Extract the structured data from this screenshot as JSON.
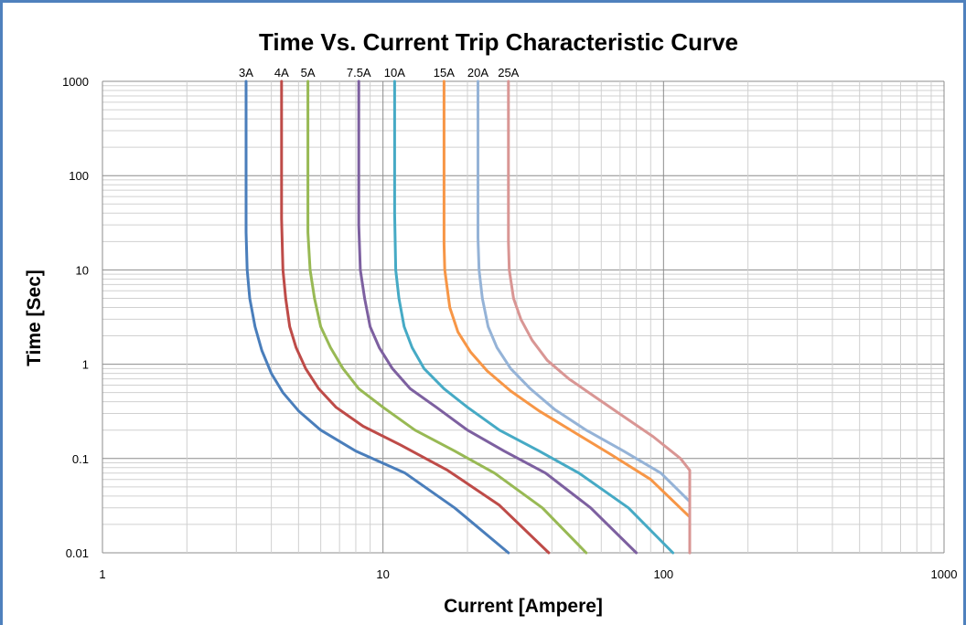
{
  "chart_data": {
    "type": "line",
    "title": "Time Vs. Current Trip Characteristic Curve",
    "xlabel": "Current [Ampere]",
    "ylabel": "Time [Sec]",
    "x_scale": "log",
    "y_scale": "log",
    "xlim": [
      1,
      1000
    ],
    "ylim": [
      0.01,
      1000
    ],
    "x_ticks": [
      "1",
      "10",
      "100",
      "1000"
    ],
    "y_ticks": [
      "1000",
      "100",
      "10",
      "1",
      "0.1",
      "0.01"
    ],
    "grid": true,
    "legend": "labels at top of each curve",
    "series": [
      {
        "name": "3A",
        "color": "#4a7ebb",
        "x": [
          3.25,
          3.25,
          3.28,
          3.35,
          3.5,
          3.7,
          4.0,
          4.4,
          5.0,
          6.0,
          8.0,
          12.0,
          18.0,
          28.0
        ],
        "y": [
          1000,
          25,
          10,
          5,
          2.5,
          1.4,
          0.8,
          0.5,
          0.32,
          0.2,
          0.12,
          0.07,
          0.03,
          0.01
        ]
      },
      {
        "name": "4A",
        "color": "#be4b48",
        "x": [
          4.35,
          4.35,
          4.4,
          4.5,
          4.65,
          4.9,
          5.3,
          5.9,
          6.8,
          8.5,
          11.5,
          17.0,
          26.0,
          39.0
        ],
        "y": [
          1000,
          35,
          10,
          5,
          2.5,
          1.5,
          0.9,
          0.55,
          0.35,
          0.22,
          0.14,
          0.075,
          0.032,
          0.01
        ]
      },
      {
        "name": "5A",
        "color": "#98b954",
        "x": [
          5.4,
          5.4,
          5.5,
          5.7,
          6.0,
          6.5,
          7.2,
          8.2,
          10.0,
          13.0,
          18.0,
          25.0,
          37.0,
          53.0
        ],
        "y": [
          1000,
          25,
          10,
          5,
          2.5,
          1.5,
          0.9,
          0.55,
          0.35,
          0.2,
          0.12,
          0.07,
          0.03,
          0.01
        ]
      },
      {
        "name": "7.5A",
        "color": "#7d60a0",
        "x": [
          8.2,
          8.2,
          8.3,
          8.6,
          9.0,
          9.7,
          10.8,
          12.5,
          15.5,
          20.0,
          27.0,
          38.0,
          55.0,
          80.0
        ],
        "y": [
          1000,
          30,
          10,
          5,
          2.5,
          1.5,
          0.9,
          0.55,
          0.35,
          0.2,
          0.12,
          0.07,
          0.03,
          0.01
        ]
      },
      {
        "name": "10A",
        "color": "#46aac5",
        "x": [
          11.0,
          11.0,
          11.1,
          11.4,
          11.9,
          12.7,
          14.0,
          16.5,
          20.0,
          26.0,
          36.0,
          50.0,
          75.0,
          108.0
        ],
        "y": [
          1000,
          40,
          10,
          5,
          2.5,
          1.5,
          0.9,
          0.55,
          0.35,
          0.2,
          0.12,
          0.07,
          0.03,
          0.01
        ]
      },
      {
        "name": "15A",
        "color": "#f79646",
        "x": [
          16.5,
          16.5,
          16.6,
          17.3,
          18.5,
          20.5,
          23.5,
          28.5,
          36.0,
          48.0,
          65.0,
          90.0,
          124.0,
          124.0
        ],
        "y": [
          1000,
          19,
          10,
          4,
          2.2,
          1.35,
          0.85,
          0.52,
          0.32,
          0.19,
          0.11,
          0.06,
          0.024,
          0.01
        ]
      },
      {
        "name": "20A",
        "color": "#95b3d7",
        "x": [
          21.8,
          21.8,
          22.0,
          22.6,
          23.7,
          25.5,
          28.5,
          33.5,
          41.0,
          53.0,
          72.0,
          98.0,
          124.0,
          124.0
        ],
        "y": [
          1000,
          22,
          10,
          5,
          2.5,
          1.5,
          0.9,
          0.55,
          0.33,
          0.2,
          0.12,
          0.07,
          0.035,
          0.01
        ]
      },
      {
        "name": "25A",
        "color": "#d99694",
        "x": [
          28.0,
          28.0,
          28.2,
          29.2,
          31.0,
          34.0,
          38.5,
          46.0,
          57.0,
          72.0,
          92.0,
          115.0,
          124.0,
          124.0,
          124.0
        ],
        "y": [
          1000,
          20,
          10,
          5,
          3,
          1.8,
          1.1,
          0.7,
          0.45,
          0.28,
          0.17,
          0.1,
          0.075,
          0.03,
          0.01
        ]
      }
    ]
  }
}
